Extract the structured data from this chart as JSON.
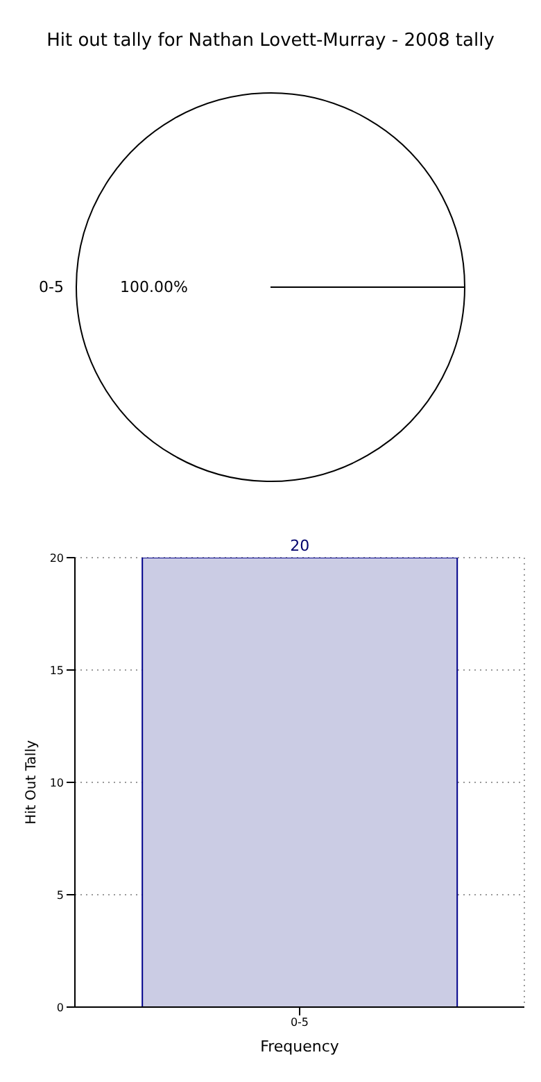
{
  "chart_data": [
    {
      "type": "pie",
      "title": "Hit out tally for Nathan Lovett-Murray - 2008 tally",
      "categories": [
        "0-5"
      ],
      "values": [
        100
      ],
      "colors": [
        "#ffffff"
      ],
      "value_labels": [
        "100.00%"
      ]
    },
    {
      "type": "bar",
      "categories": [
        "0-5"
      ],
      "values": [
        20
      ],
      "color": "#cbcce4",
      "xlabel": "Frequency",
      "ylabel": "Hit Out Tally",
      "ylim": [
        0,
        20
      ],
      "yticks": [
        0,
        5,
        10,
        15,
        20
      ],
      "grid": true,
      "data_labels": true
    }
  ]
}
